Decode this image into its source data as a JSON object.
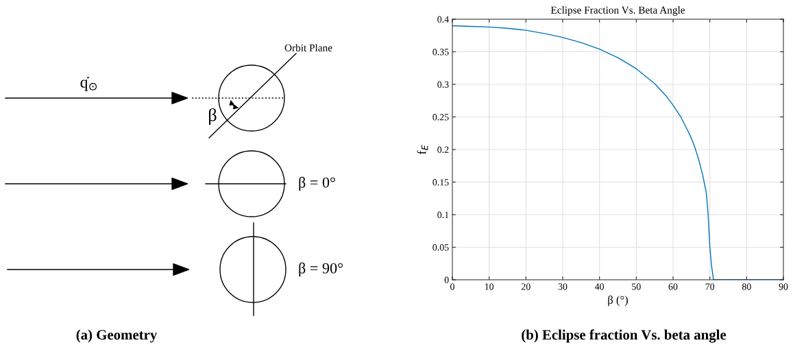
{
  "chart_data": [
    {
      "type": "other",
      "annotations": [
        "Orbit Plane",
        "q̇$_{⊙}$",
        "β",
        "β = 0°",
        "β = 90°",
        "(a) Geometry"
      ]
    },
    {
      "type": "line",
      "title": "Eclipse Fraction Vs. Beta Angle",
      "xlabel": "β (°)",
      "ylabel": "f$_{E}$",
      "x": [
        0,
        5,
        10,
        15,
        20,
        25,
        30,
        35,
        40,
        45,
        50,
        55,
        58,
        60,
        62,
        64,
        65,
        66,
        67,
        68,
        69,
        69.5,
        70,
        70.5,
        71,
        80,
        90
      ],
      "series": [
        {
          "color": "#0072bd",
          "values": [
            0.39,
            0.389,
            0.388,
            0.386,
            0.383,
            0.378,
            0.372,
            0.364,
            0.354,
            0.341,
            0.324,
            0.301,
            0.283,
            0.268,
            0.251,
            0.229,
            0.217,
            0.202,
            0.184,
            0.162,
            0.135,
            0.104,
            0.05,
            0.02,
            0,
            0,
            0
          ]
        }
      ],
      "xlim": [
        0,
        90
      ],
      "ylim": [
        0,
        0.4
      ],
      "xticks": [
        0,
        10,
        20,
        30,
        40,
        50,
        60,
        70,
        80,
        90
      ],
      "yticks": [
        0,
        0.05,
        0.1,
        0.15,
        0.2,
        0.25,
        0.3,
        0.35,
        0.4
      ],
      "grid": true,
      "marker": "none",
      "line_style": "solid",
      "annotations": [
        "(b) Eclipse fraction Vs. beta angle"
      ]
    }
  ]
}
